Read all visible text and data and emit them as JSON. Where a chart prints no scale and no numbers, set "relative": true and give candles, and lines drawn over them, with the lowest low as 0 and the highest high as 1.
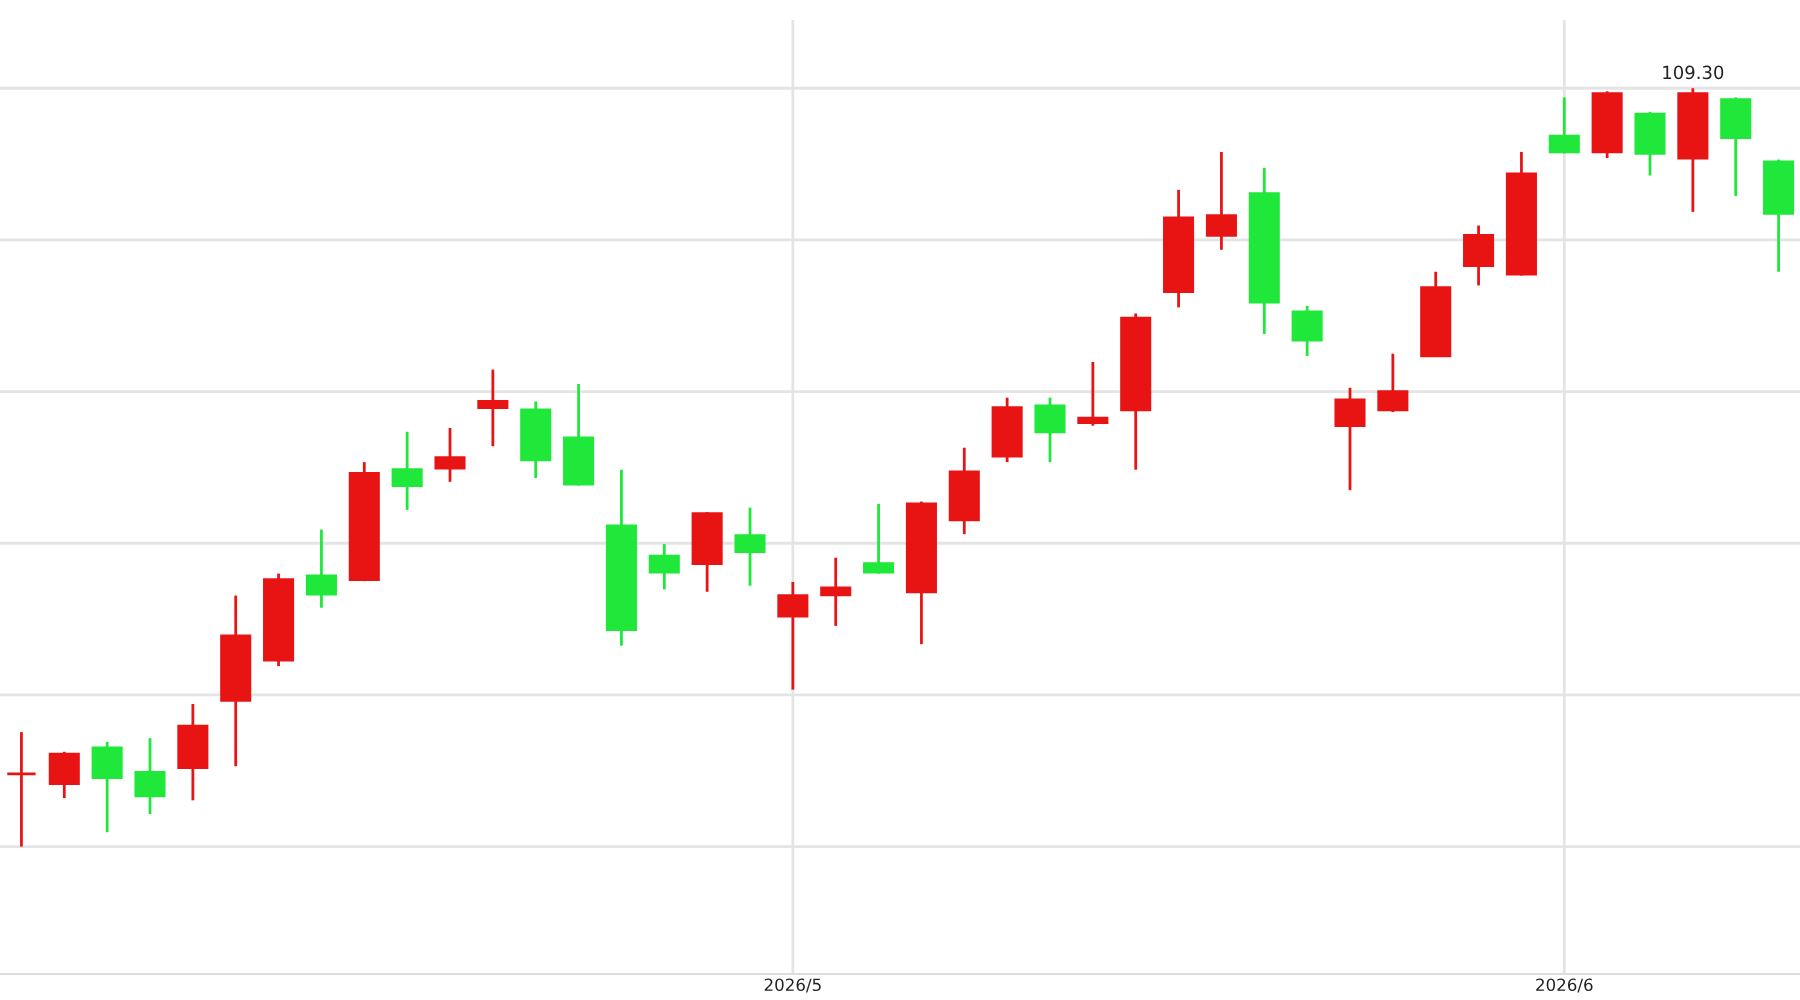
{
  "chart_data": {
    "type": "candlestick",
    "relative": true,
    "categories": [
      null,
      null,
      null,
      null,
      null,
      null,
      null,
      null,
      null,
      null,
      null,
      null,
      null,
      null,
      null,
      null,
      null,
      null,
      "2026/5",
      null,
      null,
      null,
      null,
      null,
      null,
      null,
      null,
      null,
      null,
      null,
      null,
      null,
      null,
      null,
      null,
      null,
      "2026/6",
      null,
      null,
      null,
      null,
      null
    ],
    "ohlc": [
      [
        0.096,
        0.151,
        0.0,
        0.096
      ],
      [
        0.083,
        0.125,
        0.064,
        0.122
      ],
      [
        0.13,
        0.138,
        0.019,
        0.091
      ],
      [
        0.098,
        0.143,
        0.043,
        0.067
      ],
      [
        0.104,
        0.188,
        0.061,
        0.159
      ],
      [
        0.193,
        0.331,
        0.106,
        0.278
      ],
      [
        0.246,
        0.36,
        0.238,
        0.352
      ],
      [
        0.357,
        0.418,
        0.315,
        0.333
      ],
      [
        0.352,
        0.507,
        0.35,
        0.492
      ],
      [
        0.497,
        0.547,
        0.444,
        0.476
      ],
      [
        0.499,
        0.552,
        0.481,
        0.513
      ],
      [
        0.579,
        0.629,
        0.528,
        0.587
      ],
      [
        0.576,
        0.587,
        0.486,
        0.51
      ],
      [
        0.539,
        0.61,
        0.476,
        0.478
      ],
      [
        0.423,
        0.497,
        0.265,
        0.286
      ],
      [
        0.383,
        0.399,
        0.339,
        0.362
      ],
      [
        0.373,
        0.441,
        0.336,
        0.439
      ],
      [
        0.41,
        0.447,
        0.344,
        0.389
      ],
      [
        0.304,
        0.349,
        0.207,
        0.331
      ],
      [
        0.332,
        0.381,
        0.291,
        0.341
      ],
      [
        0.373,
        0.452,
        0.36,
        0.362
      ],
      [
        0.336,
        0.455,
        0.267,
        0.452
      ],
      [
        0.431,
        0.526,
        0.412,
        0.494
      ],
      [
        0.515,
        0.592,
        0.507,
        0.579
      ],
      [
        0.581,
        0.592,
        0.507,
        0.547
      ],
      [
        0.559,
        0.639,
        0.555,
        0.565
      ],
      [
        0.576,
        0.703,
        0.497,
        0.697
      ],
      [
        0.732,
        0.866,
        0.711,
        0.829
      ],
      [
        0.806,
        0.916,
        0.787,
        0.832
      ],
      [
        0.861,
        0.895,
        0.676,
        0.718
      ],
      [
        0.705,
        0.713,
        0.647,
        0.668
      ],
      [
        0.555,
        0.605,
        0.47,
        0.589
      ],
      [
        0.576,
        0.65,
        0.573,
        0.6
      ],
      [
        0.647,
        0.758,
        0.646,
        0.737
      ],
      [
        0.766,
        0.819,
        0.74,
        0.806
      ],
      [
        0.755,
        0.916,
        0.753,
        0.887
      ],
      [
        0.937,
        0.988,
        0.914,
        0.916
      ],
      [
        0.916,
        0.996,
        0.908,
        0.993
      ],
      [
        0.966,
        0.969,
        0.885,
        0.914
      ],
      [
        0.908,
        1.0,
        0.837,
        0.993
      ],
      [
        0.985,
        0.988,
        0.858,
        0.935
      ],
      [
        0.903,
        0.906,
        0.758,
        0.835
      ]
    ],
    "colors": [
      "#e81414",
      "#e81414",
      "#1fe83a",
      "#1fe83a",
      "#e81414",
      "#e81414",
      "#e81414",
      "#1fe83a",
      "#e81414",
      "#1fe83a",
      "#e81414",
      "#e81414",
      "#1fe83a",
      "#1fe83a",
      "#1fe83a",
      "#1fe83a",
      "#e81414",
      "#1fe83a",
      "#e81414",
      "#e81414",
      "#1fe83a",
      "#e81414",
      "#e81414",
      "#e81414",
      "#1fe83a",
      "#e81414",
      "#e81414",
      "#e81414",
      "#e81414",
      "#1fe83a",
      "#1fe83a",
      "#e81414",
      "#e81414",
      "#e81414",
      "#e81414",
      "#e81414",
      "#1fe83a",
      "#e81414",
      "#1fe83a",
      "#e81414",
      "#1fe83a",
      "#1fe83a"
    ],
    "annotations": [
      {
        "text": "109.30",
        "y": 1.0
      }
    ],
    "grid": true
  }
}
